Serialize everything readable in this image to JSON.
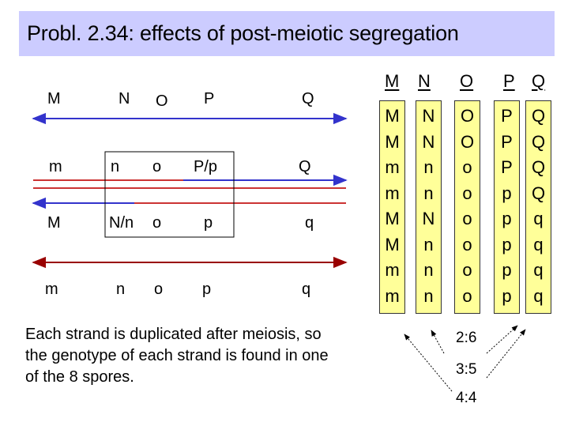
{
  "title": "Probl. 2.34: effects of post-meiotic segregation",
  "strands": [
    {
      "labels": [
        "M",
        "N",
        "O",
        "P",
        "Q"
      ],
      "color": "#3333cc",
      "direction": "right"
    },
    {
      "labels": [
        "m",
        "n",
        "o",
        "P/p",
        "Q"
      ],
      "color": "#cc3333",
      "direction": "right"
    },
    {
      "labels": [
        "M",
        "N/n",
        "o",
        "p",
        "q"
      ],
      "color": "#3333cc",
      "direction": "left"
    },
    {
      "labels": [
        "m",
        "n",
        "o",
        "p",
        "q"
      ],
      "color": "#990000",
      "direction": "left"
    }
  ],
  "spore_columns": [
    {
      "header": "M",
      "spores": [
        "M",
        "M",
        "m",
        "m",
        "M",
        "M",
        "m",
        "m"
      ]
    },
    {
      "header": "N",
      "spores": [
        "N",
        "N",
        "n",
        "n",
        "N",
        "n",
        "n",
        "n"
      ]
    },
    {
      "header": "O",
      "spores": [
        "O",
        "O",
        "o",
        "o",
        "o",
        "o",
        "o",
        "o"
      ]
    },
    {
      "header": "P",
      "spores": [
        "P",
        "P",
        "P",
        "p",
        "p",
        "p",
        "p",
        "p"
      ]
    },
    {
      "header": "Q",
      "spores": [
        "Q",
        "Q",
        "Q",
        "Q",
        "q",
        "q",
        "q",
        "q"
      ]
    }
  ],
  "note": "Each strand is duplicated after meiosis, so the genotype of each strand is found in one of the 8 spores.",
  "ratios": [
    "2:6",
    "3:5",
    "4:4"
  ],
  "colors": {
    "title_background": "#ccccff",
    "spore_background": "#ffff99",
    "blue_strand": "#3333cc",
    "red_strand": "#cc3333"
  }
}
